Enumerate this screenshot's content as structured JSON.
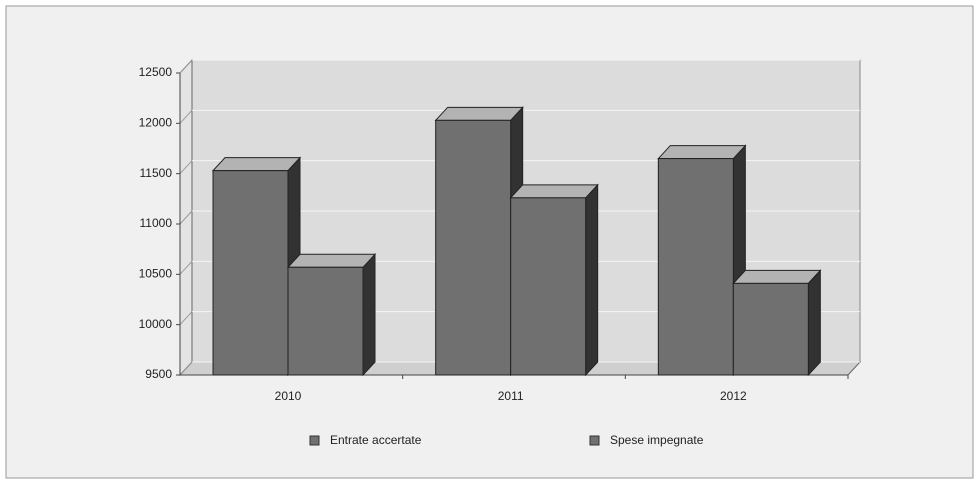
{
  "chart_data": {
    "type": "bar3d",
    "categories": [
      "2010",
      "2011",
      "2012"
    ],
    "series": [
      {
        "name": "Entrate accertate",
        "color": "#707070",
        "values": [
          11530,
          12030,
          11650
        ]
      },
      {
        "name": "Spese impegnate",
        "color": "#707070",
        "values": [
          10570,
          11260,
          10410
        ]
      }
    ],
    "ylim": [
      9500,
      12500
    ],
    "yticks": [
      9500,
      10000,
      10500,
      11000,
      11500,
      12000,
      12500
    ],
    "grid": true,
    "legend": "bottom"
  }
}
